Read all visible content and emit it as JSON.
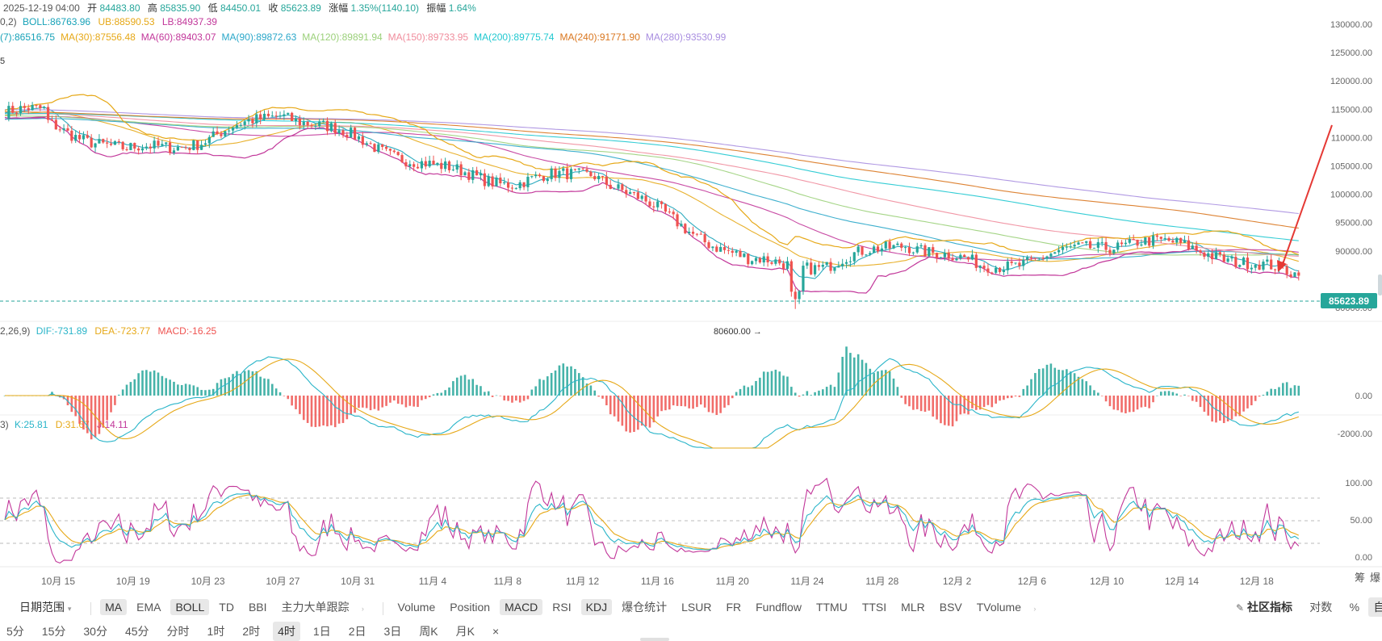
{
  "header": {
    "time": "2025-12-19 04:00",
    "open_label": "开",
    "open": "84483.80",
    "high_label": "高",
    "high": "85835.90",
    "low_label": "低",
    "low": "84450.01",
    "close_label": "收",
    "close": "85623.89",
    "change_label": "涨幅",
    "change": "1.35%(1140.10)",
    "amplitude_label": "振幅",
    "amplitude": "1.64%"
  },
  "boll_line": {
    "prefix": "0,2)",
    "boll": "BOLL:86763.96",
    "ub": "UB:88590.53",
    "lb": "LB:84937.39"
  },
  "ma_line": {
    "items": [
      {
        "text": "(7):86516.75",
        "color": "#17a2b8"
      },
      {
        "text": "MA(30):87556.48",
        "color": "#e6a817"
      },
      {
        "text": "MA(60):89403.07",
        "color": "#c2379a"
      },
      {
        "text": "MA(90):89872.63",
        "color": "#2aa7c9"
      },
      {
        "text": "MA(120):89891.94",
        "color": "#9bd07a"
      },
      {
        "text": "MA(150):89733.95",
        "color": "#f08c9c"
      },
      {
        "text": "MA(200):89775.74",
        "color": "#20c8d0"
      },
      {
        "text": "MA(240):91771.90",
        "color": "#d9761e"
      },
      {
        "text": "MA(280):93530.99",
        "color": "#a98ee0"
      }
    ]
  },
  "left_marker": "5",
  "price_axis": {
    "ticks": [
      "130000.00",
      "125000.00",
      "120000.00",
      "115000.00",
      "110000.00",
      "105000.00",
      "100000.00",
      "95000.00",
      "90000.00",
      "80000.00"
    ],
    "current_price": "85623.89",
    "low_mark": "80600.00 →"
  },
  "macd_line": {
    "prefix": "2,26,9)",
    "dif": "DIF:-731.89",
    "dea": "DEA:-723.77",
    "macd": "MACD:-16.25",
    "ticks": [
      "0.00",
      "-2000.00"
    ]
  },
  "kdj_line": {
    "prefix": "3)",
    "k": "K:25.81",
    "d": "D:31.67",
    "j": "J:14.11",
    "ticks": [
      "100.00",
      "50.00",
      "0.00"
    ]
  },
  "date_axis": {
    "labels": [
      "10月 15",
      "10月 19",
      "10月 23",
      "10月 27",
      "10月 31",
      "11月 4",
      "11月 8",
      "11月 12",
      "11月 16",
      "11月 20",
      "11月 24",
      "11月 28",
      "12月 2",
      "12月 6",
      "12月 10",
      "12月 14",
      "12月 18"
    ],
    "right_labels": [
      "筹",
      "爆"
    ]
  },
  "indicator_bar": {
    "date_range": "日期范围",
    "main_indicators": [
      {
        "label": "MA",
        "active": true
      },
      {
        "label": "EMA",
        "active": false
      },
      {
        "label": "BOLL",
        "active": true
      },
      {
        "label": "TD",
        "active": false
      },
      {
        "label": "BBI",
        "active": false
      },
      {
        "label": "主力大单跟踪",
        "active": false
      }
    ],
    "sub_indicators": [
      {
        "label": "Volume",
        "active": false
      },
      {
        "label": "Position",
        "active": false
      },
      {
        "label": "MACD",
        "active": true
      },
      {
        "label": "RSI",
        "active": false
      },
      {
        "label": "KDJ",
        "active": true
      },
      {
        "label": "爆仓统计",
        "active": false
      },
      {
        "label": "LSUR",
        "active": false
      },
      {
        "label": "FR",
        "active": false
      },
      {
        "label": "Fundflow",
        "active": false
      },
      {
        "label": "TTMU",
        "active": false
      },
      {
        "label": "TTSI",
        "active": false
      },
      {
        "label": "MLR",
        "active": false
      },
      {
        "label": "BSV",
        "active": false
      },
      {
        "label": "TVolume",
        "active": false
      }
    ],
    "community": "社区指标",
    "log": "对数",
    "percent": "%",
    "auto": "自动"
  },
  "timeframes": {
    "items": [
      {
        "label": "5分",
        "active": false
      },
      {
        "label": "15分",
        "active": false
      },
      {
        "label": "30分",
        "active": false
      },
      {
        "label": "45分",
        "active": false
      },
      {
        "label": "分时",
        "active": false
      },
      {
        "label": "1时",
        "active": false
      },
      {
        "label": "2时",
        "active": false
      },
      {
        "label": "4时",
        "active": true
      },
      {
        "label": "1日",
        "active": false
      },
      {
        "label": "2日",
        "active": false
      },
      {
        "label": "3日",
        "active": false
      },
      {
        "label": "周K",
        "active": false
      },
      {
        "label": "月K",
        "active": false
      }
    ],
    "close": "×"
  },
  "colors": {
    "up": "#26a69a",
    "down": "#ef5350",
    "current_price_bg": "#26a69a",
    "arrow": "#e53935",
    "dif": "#2ab5c9",
    "dea": "#e6a817",
    "k": "#2ab5c9",
    "d": "#e6a817",
    "j": "#c2379a"
  },
  "chart_data": {
    "type": "candlestick",
    "symbol_interval": "4时",
    "y_range": [
      78000,
      131000
    ],
    "approx_close_path": [
      {
        "date": "10月 15",
        "close": 112500
      },
      {
        "date": "10月 19",
        "close": 107500
      },
      {
        "date": "10月 23",
        "close": 109500
      },
      {
        "date": "10月 27",
        "close": 114500
      },
      {
        "date": "10月 31",
        "close": 109500
      },
      {
        "date": "11月 4",
        "close": 104500
      },
      {
        "date": "11月 8",
        "close": 102000
      },
      {
        "date": "11月 12",
        "close": 104000
      },
      {
        "date": "11月 16",
        "close": 95500
      },
      {
        "date": "11月 20",
        "close": 88000
      },
      {
        "date": "11月 24",
        "close": 87500
      },
      {
        "date": "11月 28",
        "close": 91500
      },
      {
        "date": "12月 2",
        "close": 87000
      },
      {
        "date": "12月 6",
        "close": 89500
      },
      {
        "date": "12月 10",
        "close": 92000
      },
      {
        "date": "12月 14",
        "close": 89500
      },
      {
        "date": "12月 18",
        "close": 85623.89
      }
    ],
    "low_annotation": 80600.0
  }
}
